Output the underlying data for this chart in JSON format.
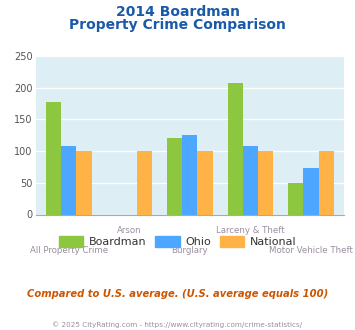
{
  "title_line1": "2014 Boardman",
  "title_line2": "Property Crime Comparison",
  "categories": [
    "All Property Crime",
    "Arson",
    "Burglary",
    "Larceny & Theft",
    "Motor Vehicle Theft"
  ],
  "series": {
    "Boardman": [
      178,
      0,
      120,
      207,
      50
    ],
    "Ohio": [
      108,
      0,
      125,
      108,
      73
    ],
    "National": [
      100,
      100,
      100,
      100,
      100
    ]
  },
  "colors": {
    "Boardman": "#8dc63f",
    "Ohio": "#4da6ff",
    "National": "#ffb347"
  },
  "ylim": [
    0,
    250
  ],
  "yticks": [
    0,
    50,
    100,
    150,
    200,
    250
  ],
  "bg_color": "#ddeef4",
  "title_color": "#1a5aab",
  "axis_label_color": "#9b8ea0",
  "grid_color": "#ffffff",
  "subtitle_text": "Compared to U.S. average. (U.S. average equals 100)",
  "footer_text": "© 2025 CityRating.com - https://www.cityrating.com/crime-statistics/",
  "subtitle_color": "#cc5500",
  "footer_color": "#9b8ea0"
}
